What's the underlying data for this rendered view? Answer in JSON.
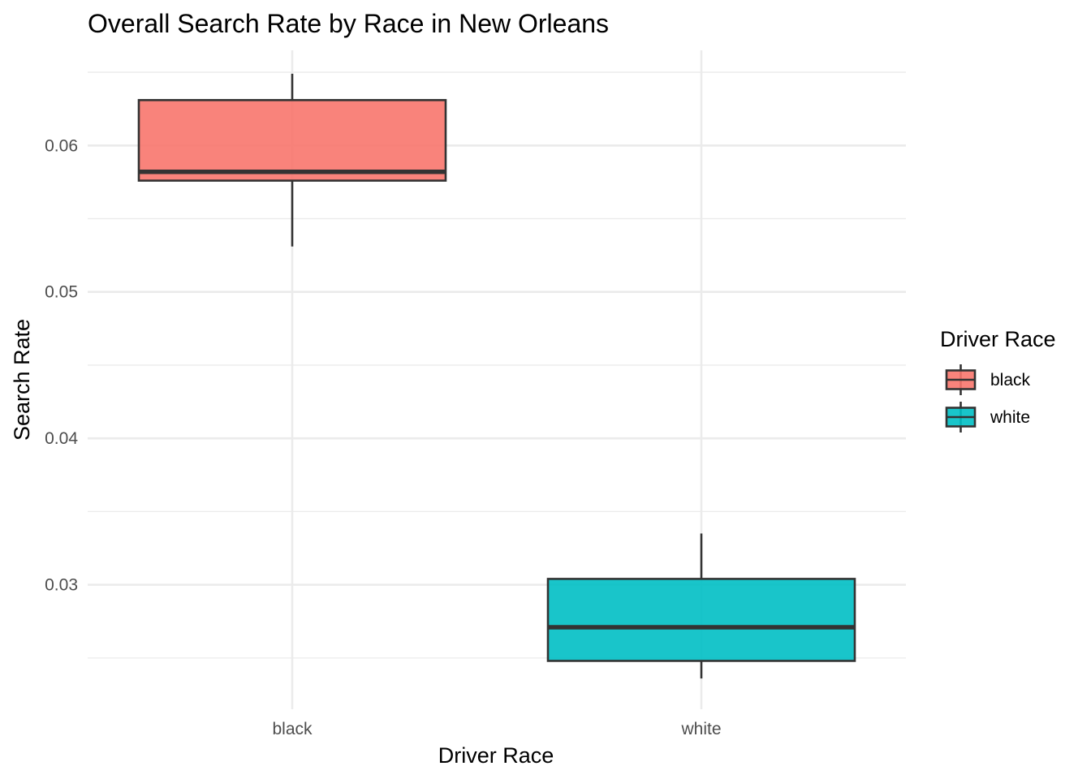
{
  "chart_data": {
    "type": "boxplot",
    "title": "Overall Search Rate by Race in New Orleans",
    "xlabel": "Driver Race",
    "ylabel": "Search Rate",
    "categories": [
      "black",
      "white"
    ],
    "ylim": [
      0.0215,
      0.0665
    ],
    "yticks": [
      0.03,
      0.04,
      0.05,
      0.06
    ],
    "ytick_labels": [
      "0.03",
      "0.04",
      "0.05",
      "0.06"
    ],
    "grid": true,
    "legend": {
      "title": "Driver Race",
      "placement": "right",
      "entries": [
        "black",
        "white"
      ]
    },
    "series": [
      {
        "category": "black",
        "color": "#F8766D",
        "min": 0.0531,
        "q1": 0.0576,
        "median": 0.0582,
        "q3": 0.0631,
        "max": 0.0649
      },
      {
        "category": "white",
        "color": "#00BFC4",
        "min": 0.0236,
        "q1": 0.0248,
        "median": 0.0271,
        "q3": 0.0304,
        "max": 0.0335
      }
    ]
  }
}
